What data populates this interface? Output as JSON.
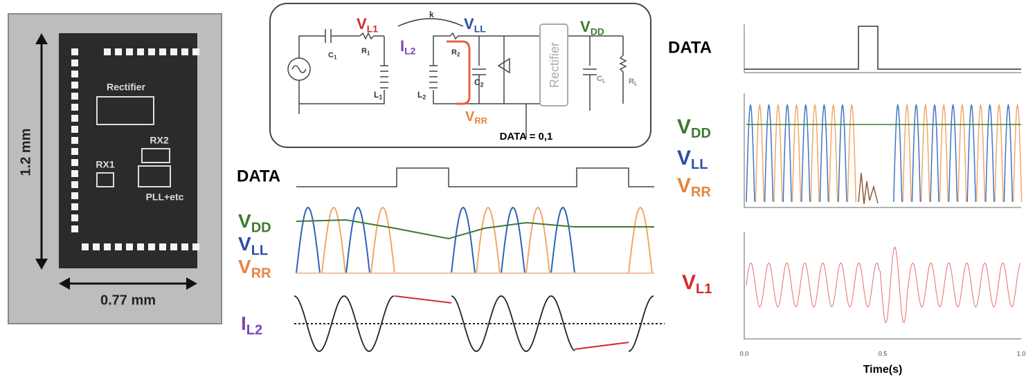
{
  "chip": {
    "height_label": "1.2 mm",
    "width_label": "0.77 mm",
    "blocks": [
      "Rectifier",
      "RX2",
      "RX1",
      "PLL+etc"
    ]
  },
  "circuit": {
    "rectifier": "Rectifier",
    "data_select": "DATA = 0,1",
    "labels": [
      {
        "main": "V",
        "sub": "L1"
      },
      {
        "main": "k",
        "sub": ""
      },
      {
        "main": "I",
        "sub": "L2"
      },
      {
        "main": "V",
        "sub": "LL"
      },
      {
        "main": "V",
        "sub": "DD"
      },
      {
        "main": "C",
        "sub": "1"
      },
      {
        "main": "R",
        "sub": "1"
      },
      {
        "main": "L",
        "sub": "1"
      },
      {
        "main": "L",
        "sub": "2"
      },
      {
        "main": "R",
        "sub": "2"
      },
      {
        "main": "C",
        "sub": "2"
      },
      {
        "main": "V",
        "sub": "RR"
      },
      {
        "main": "C",
        "sub": "L"
      },
      {
        "main": "R",
        "sub": "L"
      }
    ]
  },
  "timing": {
    "data_label": "DATA",
    "signals": [
      {
        "main": "V",
        "sub": "DD"
      },
      {
        "main": "V",
        "sub": "LL"
      },
      {
        "main": "V",
        "sub": "RR"
      }
    ],
    "current": {
      "main": "I",
      "sub": "L2"
    }
  },
  "measured": {
    "data_label": "DATA",
    "signals": [
      {
        "main": "V",
        "sub": "DD"
      },
      {
        "main": "V",
        "sub": "LL"
      },
      {
        "main": "V",
        "sub": "RR"
      }
    ],
    "coil": {
      "main": "V",
      "sub": "L1"
    },
    "x_label": "Time(s)",
    "xticks": [
      "0.0",
      "0.5",
      "1.0"
    ]
  }
}
